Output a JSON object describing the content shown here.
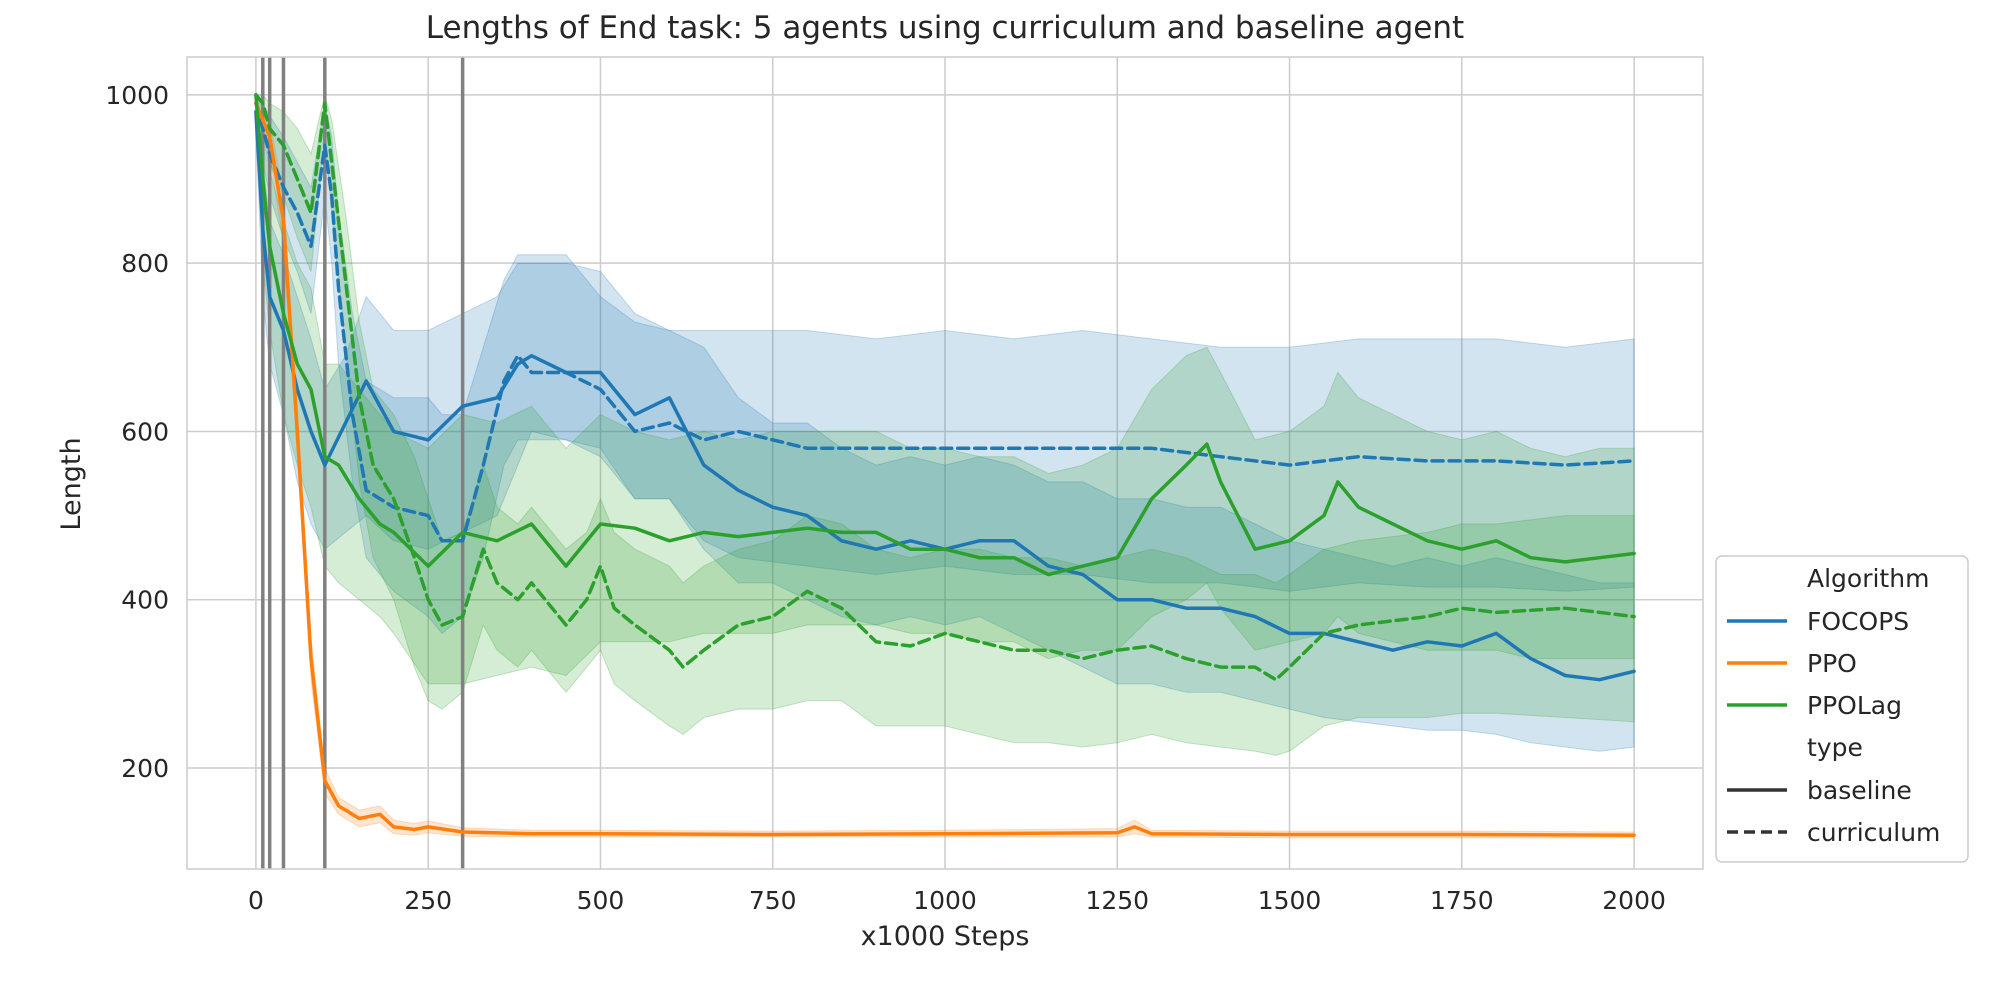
{
  "chart_data": {
    "type": "line",
    "title": "Lengths of End task: 5 agents using curriculum and baseline agent",
    "xlabel": "x1000 Steps",
    "ylabel": "Length",
    "xlim": [
      -100,
      2100
    ],
    "ylim": [
      80,
      1045
    ],
    "xticks": [
      "0",
      "250",
      "500",
      "750",
      "1000",
      "1250",
      "1500",
      "1750",
      "2000"
    ],
    "yticks": [
      "200",
      "400",
      "600",
      "800",
      "1000"
    ],
    "xtick_values": [
      0,
      250,
      500,
      750,
      1000,
      1250,
      1500,
      1750,
      2000
    ],
    "ytick_values": [
      200,
      400,
      600,
      800,
      1000
    ],
    "grid": true,
    "legend_position": "lower-right",
    "curriculum_markers": [
      10,
      20,
      40,
      100,
      300
    ],
    "legend": {
      "algorithm_title": "Algorithm",
      "type_title": "type",
      "algorithms": [
        "FOCOPS",
        "PPO",
        "PPOLag"
      ],
      "types": [
        "baseline",
        "curriculum"
      ]
    },
    "colors": {
      "FOCOPS": "#1f77b4",
      "PPO": "#ff7f0e",
      "PPOLag": "#2ca02c",
      "marker_line": "#808080",
      "grid": "#cccccc"
    },
    "series": [
      {
        "algorithm": "FOCOPS",
        "type": "baseline",
        "x": [
          0,
          10,
          20,
          40,
          60,
          80,
          100,
          130,
          160,
          200,
          250,
          300,
          350,
          380,
          400,
          450,
          500,
          550,
          600,
          650,
          700,
          750,
          800,
          850,
          900,
          950,
          1000,
          1050,
          1100,
          1150,
          1200,
          1250,
          1300,
          1350,
          1400,
          1450,
          1500,
          1550,
          1600,
          1650,
          1700,
          1750,
          1800,
          1850,
          1900,
          1950,
          2000
        ],
        "y": [
          980,
          840,
          760,
          720,
          650,
          600,
          560,
          610,
          660,
          600,
          590,
          630,
          640,
          680,
          690,
          670,
          670,
          620,
          640,
          560,
          530,
          510,
          500,
          470,
          460,
          470,
          460,
          470,
          470,
          440,
          430,
          400,
          400,
          390,
          390,
          380,
          360,
          360,
          350,
          340,
          350,
          345,
          360,
          330,
          310,
          305,
          315
        ],
        "lower": [
          960,
          760,
          680,
          620,
          540,
          490,
          460,
          480,
          500,
          470,
          460,
          480,
          500,
          560,
          600,
          590,
          580,
          520,
          520,
          460,
          420,
          420,
          400,
          380,
          370,
          380,
          370,
          380,
          360,
          340,
          320,
          300,
          300,
          290,
          290,
          280,
          270,
          260,
          255,
          250,
          245,
          245,
          240,
          230,
          225,
          220,
          225
        ],
        "upper": [
          1000,
          920,
          850,
          810,
          760,
          710,
          650,
          690,
          760,
          720,
          720,
          740,
          760,
          800,
          800,
          800,
          790,
          740,
          720,
          700,
          640,
          610,
          610,
          580,
          560,
          570,
          560,
          570,
          560,
          540,
          540,
          520,
          520,
          510,
          510,
          490,
          470,
          460,
          450,
          440,
          450,
          440,
          450,
          440,
          430,
          420,
          420
        ]
      },
      {
        "algorithm": "FOCOPS",
        "type": "curriculum",
        "x": [
          0,
          10,
          20,
          40,
          60,
          80,
          100,
          110,
          120,
          140,
          160,
          200,
          250,
          270,
          300,
          330,
          360,
          380,
          400,
          450,
          500,
          550,
          600,
          650,
          700,
          800,
          900,
          1000,
          1100,
          1200,
          1300,
          1400,
          1500,
          1600,
          1700,
          1800,
          1900,
          2000
        ],
        "y": [
          990,
          960,
          930,
          890,
          860,
          820,
          940,
          880,
          770,
          620,
          530,
          510,
          500,
          470,
          470,
          560,
          660,
          690,
          670,
          670,
          650,
          600,
          610,
          590,
          600,
          580,
          580,
          580,
          580,
          580,
          580,
          570,
          560,
          570,
          565,
          565,
          560,
          565
        ],
        "lower": [
          970,
          920,
          880,
          830,
          790,
          740,
          880,
          800,
          680,
          540,
          450,
          410,
          380,
          360,
          380,
          450,
          560,
          590,
          590,
          590,
          570,
          520,
          520,
          470,
          450,
          440,
          430,
          440,
          430,
          430,
          420,
          420,
          410,
          420,
          415,
          415,
          410,
          415
        ],
        "upper": [
          1000,
          990,
          975,
          950,
          920,
          890,
          990,
          950,
          860,
          740,
          660,
          640,
          640,
          620,
          620,
          700,
          780,
          810,
          810,
          810,
          760,
          730,
          720,
          720,
          720,
          720,
          710,
          720,
          710,
          720,
          710,
          700,
          700,
          710,
          710,
          710,
          700,
          710
        ]
      },
      {
        "algorithm": "PPO",
        "type": "baseline",
        "x": [
          0,
          20,
          40,
          60,
          80,
          100,
          120,
          150,
          180,
          200,
          230,
          250,
          300,
          400,
          500,
          750,
          1000,
          1250,
          1275,
          1300,
          1500,
          1750,
          2000
        ],
        "y": [
          990,
          950,
          850,
          600,
          330,
          185,
          155,
          140,
          145,
          130,
          127,
          130,
          124,
          122,
          122,
          121,
          122,
          123,
          130,
          122,
          121,
          121,
          120
        ],
        "lower": [
          980,
          930,
          820,
          570,
          305,
          170,
          145,
          130,
          135,
          122,
          120,
          123,
          119,
          118,
          118,
          118,
          118,
          118,
          122,
          118,
          117,
          117,
          117
        ],
        "upper": [
          1000,
          970,
          880,
          630,
          355,
          200,
          165,
          150,
          155,
          138,
          134,
          137,
          129,
          126,
          126,
          125,
          126,
          128,
          138,
          126,
          125,
          125,
          124
        ]
      },
      {
        "algorithm": "PPOLag",
        "type": "baseline",
        "x": [
          0,
          10,
          20,
          40,
          60,
          80,
          100,
          120,
          150,
          180,
          200,
          250,
          300,
          350,
          400,
          450,
          500,
          550,
          600,
          650,
          700,
          750,
          800,
          850,
          900,
          950,
          1000,
          1050,
          1100,
          1150,
          1200,
          1250,
          1300,
          1350,
          1380,
          1400,
          1450,
          1500,
          1550,
          1570,
          1600,
          1650,
          1700,
          1750,
          1800,
          1850,
          1900,
          1950,
          2000
        ],
        "y": [
          1000,
          900,
          820,
          740,
          680,
          650,
          570,
          560,
          520,
          490,
          480,
          440,
          480,
          470,
          490,
          440,
          490,
          485,
          470,
          480,
          475,
          480,
          485,
          480,
          480,
          460,
          460,
          450,
          450,
          430,
          440,
          450,
          520,
          560,
          585,
          540,
          460,
          470,
          500,
          540,
          510,
          490,
          470,
          460,
          470,
          450,
          445,
          450,
          455
        ],
        "lower": [
          980,
          800,
          720,
          620,
          560,
          510,
          440,
          420,
          400,
          380,
          360,
          300,
          300,
          310,
          320,
          310,
          350,
          350,
          350,
          360,
          360,
          360,
          370,
          370,
          370,
          360,
          360,
          350,
          350,
          330,
          340,
          340,
          380,
          400,
          420,
          390,
          340,
          350,
          360,
          380,
          360,
          350,
          340,
          340,
          340,
          330,
          330,
          330,
          330
        ],
        "upper": [
          1000,
          960,
          910,
          850,
          800,
          770,
          680,
          680,
          650,
          620,
          600,
          580,
          620,
          610,
          630,
          580,
          620,
          600,
          590,
          600,
          590,
          600,
          600,
          600,
          600,
          580,
          580,
          570,
          570,
          550,
          560,
          580,
          650,
          690,
          700,
          670,
          590,
          600,
          630,
          670,
          640,
          620,
          600,
          590,
          600,
          580,
          570,
          580,
          580
        ]
      },
      {
        "algorithm": "PPOLag",
        "type": "curriculum",
        "x": [
          0,
          10,
          20,
          40,
          60,
          80,
          100,
          110,
          130,
          150,
          170,
          200,
          230,
          250,
          270,
          300,
          330,
          350,
          380,
          400,
          450,
          480,
          500,
          520,
          550,
          600,
          620,
          650,
          700,
          750,
          800,
          850,
          900,
          950,
          1000,
          1050,
          1100,
          1150,
          1200,
          1250,
          1300,
          1350,
          1400,
          1450,
          1480,
          1500,
          1550,
          1600,
          1700,
          1750,
          1800,
          1900,
          2000
        ],
        "y": [
          1000,
          990,
          960,
          940,
          900,
          860,
          990,
          920,
          780,
          640,
          560,
          520,
          450,
          400,
          370,
          380,
          460,
          420,
          400,
          420,
          370,
          400,
          440,
          390,
          370,
          340,
          320,
          340,
          370,
          380,
          410,
          390,
          350,
          345,
          360,
          350,
          340,
          340,
          330,
          340,
          345,
          330,
          320,
          320,
          305,
          320,
          360,
          370,
          380,
          390,
          385,
          390,
          380
        ],
        "lower": [
          980,
          960,
          920,
          880,
          830,
          790,
          950,
          860,
          700,
          540,
          450,
          400,
          320,
          280,
          270,
          290,
          370,
          340,
          320,
          340,
          290,
          320,
          340,
          300,
          280,
          250,
          240,
          260,
          270,
          270,
          280,
          280,
          250,
          250,
          250,
          240,
          230,
          230,
          225,
          230,
          240,
          230,
          225,
          220,
          215,
          220,
          250,
          260,
          260,
          265,
          265,
          260,
          255
        ],
        "upper": [
          1000,
          1000,
          990,
          980,
          960,
          930,
          1000,
          970,
          860,
          730,
          650,
          620,
          570,
          520,
          470,
          480,
          560,
          510,
          490,
          510,
          460,
          480,
          520,
          480,
          460,
          440,
          420,
          440,
          460,
          470,
          500,
          490,
          460,
          450,
          460,
          460,
          450,
          450,
          440,
          450,
          460,
          450,
          430,
          430,
          420,
          430,
          460,
          470,
          480,
          490,
          490,
          500,
          500
        ]
      }
    ]
  }
}
